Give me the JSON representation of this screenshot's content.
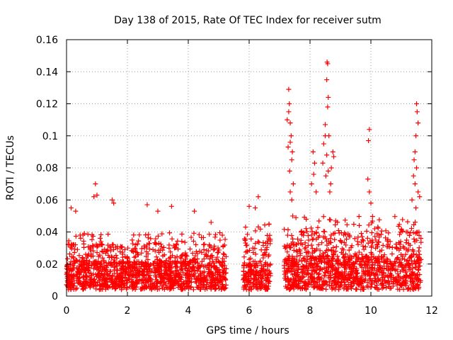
{
  "chart_data": {
    "type": "scatter",
    "title": "Day 138 of 2015, Rate Of TEC Index for receiver sutm",
    "xlabel": "GPS time / hours",
    "ylabel": "ROTI / TECUs",
    "xlim": [
      0,
      12
    ],
    "ylim": [
      0,
      0.16
    ],
    "xticks": [
      0,
      2,
      4,
      6,
      8,
      10,
      12
    ],
    "xtick_labels": [
      "0",
      "2",
      "4",
      "6",
      "8",
      "10",
      "12"
    ],
    "yticks": [
      0,
      0.02,
      0.04,
      0.06,
      0.08,
      0.1,
      0.12,
      0.14,
      0.16
    ],
    "ytick_labels": [
      "0",
      "0.02",
      "0.04",
      "0.06",
      "0.08",
      "0.1",
      "0.12",
      "0.14",
      "0.16"
    ],
    "grid": true,
    "marker": "+",
    "color": "#ff0000",
    "series": [
      {
        "name": "ROTI",
        "clusters": [
          {
            "x_range": [
              0.0,
              5.25
            ],
            "baseline": [
              0.004,
              0.022
            ],
            "spread_max": 0.04
          },
          {
            "x_range": [
              5.8,
              6.7
            ],
            "baseline": [
              0.004,
              0.02
            ],
            "spread_max": 0.045
          },
          {
            "x_range": [
              7.15,
              11.65
            ],
            "baseline": [
              0.004,
              0.025
            ],
            "spread_max": 0.05
          }
        ],
        "points": [
          [
            0.15,
            0.055
          ],
          [
            0.3,
            0.053
          ],
          [
            0.95,
            0.07
          ],
          [
            0.9,
            0.062
          ],
          [
            1.0,
            0.063
          ],
          [
            1.5,
            0.06
          ],
          [
            1.55,
            0.058
          ],
          [
            2.65,
            0.057
          ],
          [
            3.0,
            0.053
          ],
          [
            3.45,
            0.056
          ],
          [
            4.2,
            0.053
          ],
          [
            4.75,
            0.046
          ],
          [
            6.0,
            0.056
          ],
          [
            6.2,
            0.055
          ],
          [
            6.3,
            0.062
          ],
          [
            6.65,
            0.045
          ],
          [
            7.3,
            0.129
          ],
          [
            7.32,
            0.12
          ],
          [
            7.3,
            0.115
          ],
          [
            7.25,
            0.11
          ],
          [
            7.35,
            0.108
          ],
          [
            7.38,
            0.1
          ],
          [
            7.35,
            0.096
          ],
          [
            7.28,
            0.093
          ],
          [
            7.42,
            0.09
          ],
          [
            7.4,
            0.085
          ],
          [
            7.33,
            0.078
          ],
          [
            7.45,
            0.07
          ],
          [
            7.35,
            0.065
          ],
          [
            7.4,
            0.06
          ],
          [
            8.1,
            0.09
          ],
          [
            8.15,
            0.083
          ],
          [
            8.12,
            0.076
          ],
          [
            8.05,
            0.07
          ],
          [
            8.2,
            0.065
          ],
          [
            8.5,
            0.1
          ],
          [
            8.45,
            0.095
          ],
          [
            8.55,
            0.088
          ],
          [
            8.42,
            0.083
          ],
          [
            8.6,
            0.078
          ],
          [
            8.52,
            0.075
          ],
          [
            8.58,
            0.145
          ],
          [
            8.56,
            0.146
          ],
          [
            8.55,
            0.135
          ],
          [
            8.6,
            0.124
          ],
          [
            8.58,
            0.118
          ],
          [
            8.5,
            0.107
          ],
          [
            8.62,
            0.1
          ],
          [
            8.75,
            0.09
          ],
          [
            8.78,
            0.087
          ],
          [
            8.7,
            0.08
          ],
          [
            8.68,
            0.07
          ],
          [
            8.65,
            0.065
          ],
          [
            9.95,
            0.104
          ],
          [
            9.92,
            0.097
          ],
          [
            9.9,
            0.073
          ],
          [
            9.95,
            0.065
          ],
          [
            10.0,
            0.058
          ],
          [
            11.5,
            0.12
          ],
          [
            11.52,
            0.115
          ],
          [
            11.55,
            0.108
          ],
          [
            11.48,
            0.1
          ],
          [
            11.45,
            0.09
          ],
          [
            11.42,
            0.085
          ],
          [
            11.5,
            0.08
          ],
          [
            11.4,
            0.075
          ],
          [
            11.45,
            0.07
          ],
          [
            11.55,
            0.065
          ],
          [
            11.6,
            0.062
          ],
          [
            11.35,
            0.06
          ],
          [
            11.48,
            0.055
          ]
        ]
      }
    ]
  }
}
